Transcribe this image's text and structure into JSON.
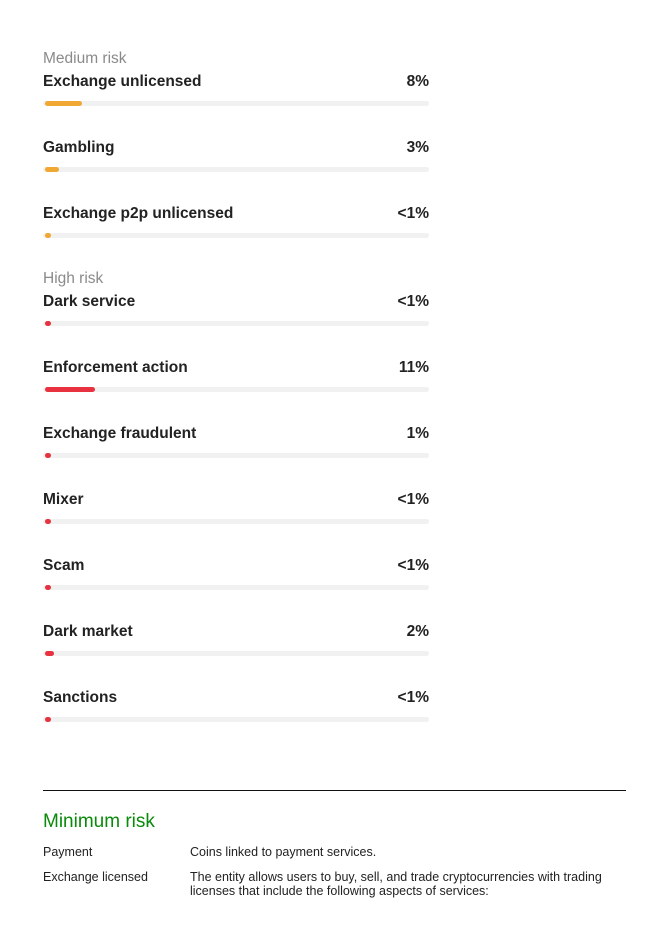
{
  "medium_group": {
    "title": "Medium risk",
    "items": [
      {
        "label": "Exchange unlicensed",
        "value": "8%",
        "fill_fraction": 0.08
      },
      {
        "label": "Gambling",
        "value": "3%",
        "fill_fraction": 0.03
      },
      {
        "label": "Exchange p2p unlicensed",
        "value": "<1%",
        "fill_fraction": 0.005
      }
    ]
  },
  "high_group": {
    "title": "High risk",
    "items": [
      {
        "label": "Dark service",
        "value": "<1%",
        "fill_fraction": 0.005
      },
      {
        "label": "Enforcement action",
        "value": "11%",
        "fill_fraction": 0.11
      },
      {
        "label": "Exchange fraudulent",
        "value": "1%",
        "fill_fraction": 0.01
      },
      {
        "label": "Mixer",
        "value": "<1%",
        "fill_fraction": 0.005
      },
      {
        "label": "Scam",
        "value": "<1%",
        "fill_fraction": 0.005
      },
      {
        "label": "Dark market",
        "value": "2%",
        "fill_fraction": 0.02
      },
      {
        "label": "Sanctions",
        "value": "<1%",
        "fill_fraction": 0.005
      }
    ]
  },
  "colors": {
    "medium": "#f0a833",
    "high": "#e8323f",
    "minimum_title": "#0a8a0a"
  },
  "minimum_risk": {
    "title": "Minimum risk",
    "rows": [
      {
        "label": "Payment",
        "description": "Coins linked to payment services."
      },
      {
        "label": "Exchange licensed",
        "description": "The entity allows users to buy, sell, and trade cryptocurrencies with trading licenses that include the following aspects of services:"
      }
    ]
  }
}
